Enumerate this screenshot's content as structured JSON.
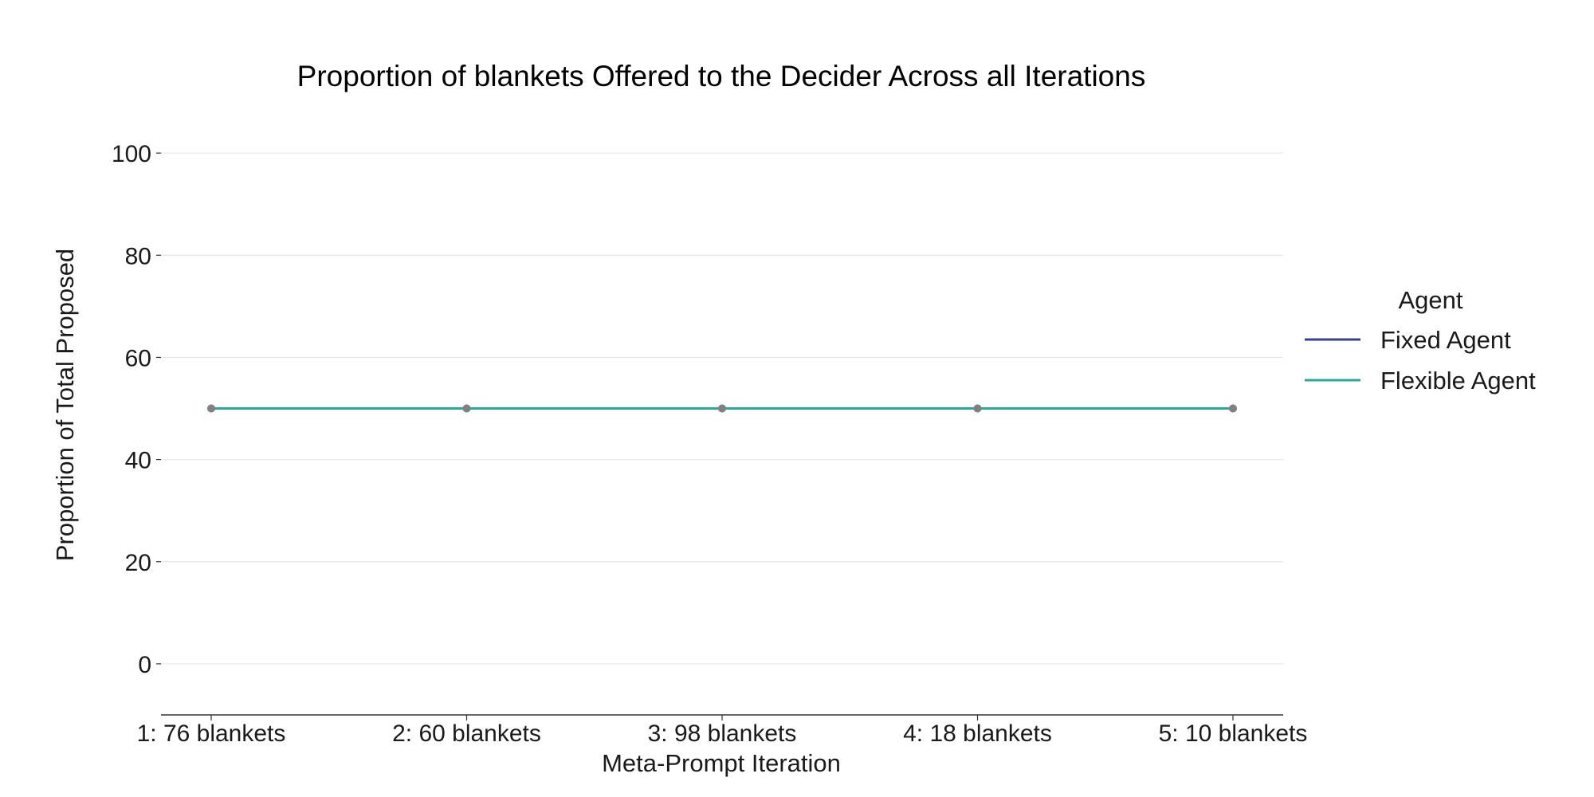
{
  "chart_data": {
    "type": "line",
    "title": "Proportion of blankets Offered to the Decider Across all Iterations",
    "xlabel": "Meta-Prompt Iteration",
    "ylabel": "Proportion of Total Proposed",
    "categories": [
      "1: 76 blankets",
      "2: 60 blankets",
      "3: 98 blankets",
      "4: 18 blankets",
      "5: 10 blankets"
    ],
    "ylim": [
      -10,
      110
    ],
    "yticks": [
      0,
      20,
      40,
      60,
      80,
      100
    ],
    "grid": true,
    "legend": {
      "title": "Agent",
      "placement": "right"
    },
    "series": [
      {
        "name": "Fixed Agent",
        "color": "#3a3f8f",
        "values": [
          50,
          50,
          50,
          50,
          50
        ]
      },
      {
        "name": "Flexible Agent",
        "color": "#2ba89c",
        "values": [
          50,
          50,
          50,
          50,
          50
        ]
      }
    ],
    "point_color": "#808080"
  }
}
